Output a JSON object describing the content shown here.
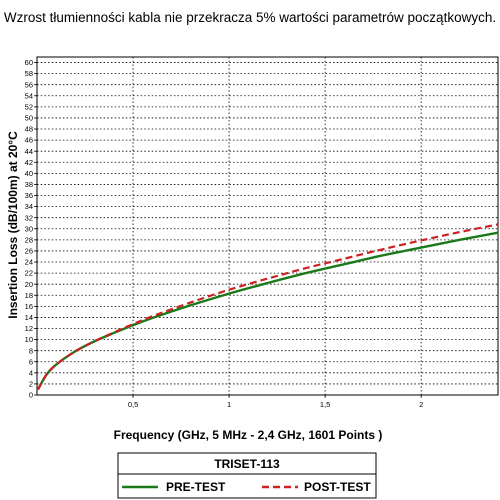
{
  "caption": "Wzrost tłumienności kabla nie przekracza 5% wartości parametrów początkowych.",
  "chart_data": {
    "type": "line",
    "xlabel": "Frequency (GHz, 5 MHz - 2,4 GHz, 1601 Points )",
    "ylabel": "Insertion Loss (dB/100m) at 20°C",
    "xlim": [
      0,
      2.4
    ],
    "ylim": [
      0,
      61
    ],
    "x_ticks": [
      "0,5",
      "1",
      "1,5",
      "2"
    ],
    "x_tick_values": [
      0.5,
      1,
      1.5,
      2
    ],
    "y_ticks": [
      "0",
      "2",
      "4",
      "6",
      "8",
      "10",
      "12",
      "14",
      "16",
      "18",
      "20",
      "22",
      "24",
      "26",
      "28",
      "30",
      "32",
      "34",
      "36",
      "38",
      "40",
      "42",
      "44",
      "46",
      "48",
      "50",
      "52",
      "54",
      "56",
      "58",
      "60"
    ],
    "grid": true,
    "legend": {
      "title": "TRISET-113",
      "placement": "bottom-center"
    },
    "series": [
      {
        "name": "PRE-TEST",
        "color": "#1a7a1a",
        "style": "solid",
        "x": [
          0.005,
          0.05,
          0.1,
          0.2,
          0.3,
          0.4,
          0.5,
          0.6,
          0.8,
          1.0,
          1.2,
          1.4,
          1.6,
          1.8,
          2.0,
          2.2,
          2.4
        ],
        "y": [
          1.0,
          3.7,
          5.5,
          7.9,
          9.7,
          11.2,
          12.6,
          13.9,
          16.2,
          18.3,
          20.2,
          22.0,
          23.6,
          25.2,
          26.6,
          28.0,
          29.3
        ]
      },
      {
        "name": "POST-TEST",
        "color": "#cc2222",
        "style": "dashed",
        "x": [
          0.005,
          0.05,
          0.1,
          0.2,
          0.3,
          0.4,
          0.5,
          0.6,
          0.8,
          1.0,
          1.2,
          1.4,
          1.6,
          1.8,
          2.0,
          2.2,
          2.4
        ],
        "y": [
          1.0,
          3.7,
          5.5,
          7.9,
          9.7,
          11.3,
          12.8,
          14.2,
          16.7,
          19.0,
          21.0,
          22.9,
          24.6,
          26.3,
          27.9,
          29.4,
          30.8
        ]
      }
    ]
  }
}
